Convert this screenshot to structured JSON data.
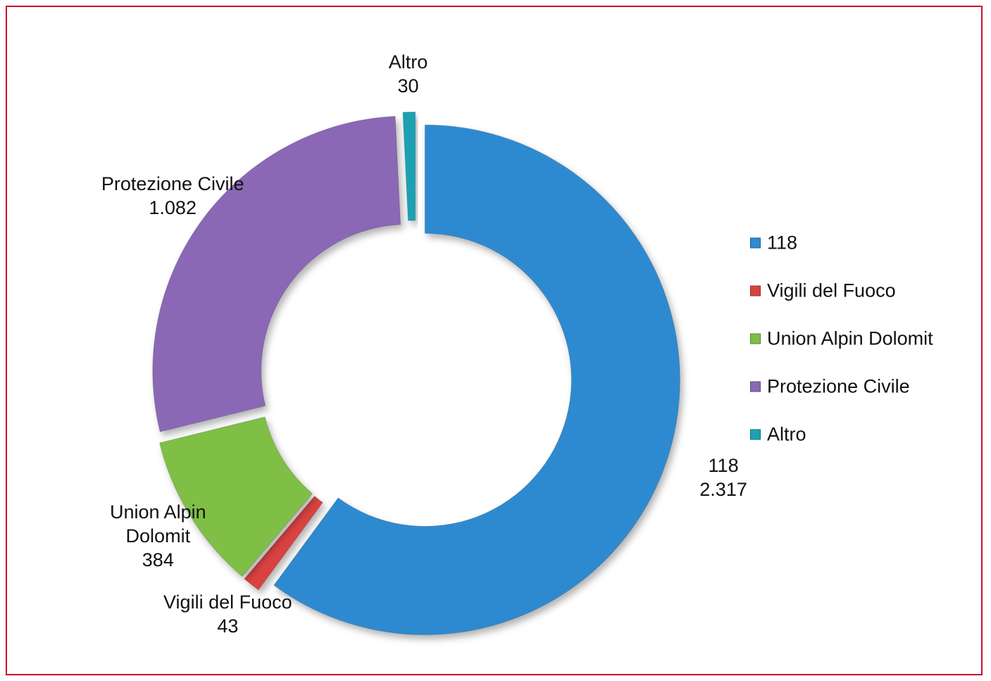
{
  "chart_data": {
    "type": "donut",
    "categories": [
      "118",
      "Vigili del Fuoco",
      "Union Alpin Dolomit",
      "Protezione Civile",
      "Altro"
    ],
    "values": [
      2317,
      43,
      384,
      1082,
      30
    ],
    "value_labels": [
      "2.317",
      "43",
      "384",
      "1.082",
      "30"
    ],
    "colors": [
      "#2f8ad0",
      "#d9433f",
      "#7fbf45",
      "#8a68b5",
      "#1ba1b3"
    ],
    "legend": "right"
  }
}
